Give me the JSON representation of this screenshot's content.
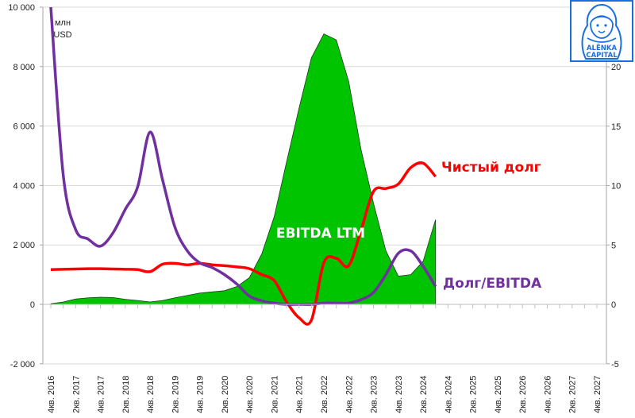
{
  "chart_data": {
    "type": "line",
    "title": "",
    "ylabel_left": "млн USD",
    "left_axis": {
      "min": -2000,
      "max": 10000,
      "ticks": [
        "10 000",
        "8 000",
        "6 000",
        "4 000",
        "2 000",
        "0",
        "-2 000"
      ],
      "tick_values": [
        10000,
        8000,
        6000,
        4000,
        2000,
        0,
        -2000
      ]
    },
    "right_axis": {
      "min": -5,
      "max": 25,
      "ticks": [
        "20",
        "15",
        "10",
        "5",
        "0",
        "-5"
      ],
      "tick_values": [
        20,
        15,
        10,
        5,
        0,
        -5
      ]
    },
    "x_labels": [
      "4кв. 2016",
      "2кв. 2017",
      "4кв. 2017",
      "2кв. 2018",
      "4кв. 2018",
      "2кв. 2019",
      "4кв. 2019",
      "2кв. 2020",
      "4кв. 2020",
      "2кв. 2021",
      "4кв. 2021",
      "2кв. 2022",
      "4кв. 2022",
      "2кв. 2023",
      "4кв. 2023",
      "2кв. 2024",
      "4кв. 2024",
      "2кв. 2025",
      "4кв. 2025",
      "2кв. 2026",
      "4кв. 2026",
      "2кв. 2027",
      "4кв. 2027"
    ],
    "x_quarters_total": 45,
    "grid": true,
    "series": [
      {
        "name": "EBITDA LTM",
        "type": "area",
        "axis": "left",
        "color": "#00c400",
        "values": [
          20,
          80,
          180,
          220,
          240,
          230,
          170,
          130,
          80,
          130,
          220,
          300,
          380,
          420,
          460,
          600,
          900,
          1700,
          2950,
          4800,
          6600,
          8300,
          9100,
          8900,
          7500,
          5200,
          3400,
          1800,
          950,
          1000,
          1450,
          2850
        ]
      },
      {
        "name": "Чистый долг",
        "type": "line",
        "axis": "left",
        "color": "#ff0000",
        "values": [
          1170,
          1180,
          1190,
          1200,
          1200,
          1190,
          1180,
          1170,
          1100,
          1350,
          1380,
          1330,
          1380,
          1330,
          1300,
          1260,
          1200,
          1000,
          800,
          80,
          -450,
          -530,
          1400,
          1550,
          1300,
          2500,
          3800,
          3900,
          4050,
          4600,
          4750,
          4300
        ]
      },
      {
        "name": "Долг/EBITDA",
        "type": "line",
        "axis": "right",
        "color": "#7030a0",
        "values": [
          30,
          10.9,
          6.3,
          5.5,
          4.9,
          6,
          8,
          9.9,
          14.5,
          10.5,
          6.5,
          4.5,
          3.5,
          3.1,
          2.5,
          1.7,
          0.7,
          0.3,
          0.1,
          0,
          0,
          0,
          0.1,
          0.1,
          0.1,
          0.4,
          1,
          2.5,
          4.3,
          4.5,
          3.2,
          1.5
        ]
      }
    ],
    "annotations": [
      {
        "text": "EBITDA LTM",
        "color": "#ffffff"
      },
      {
        "text": "Чистый долг",
        "color": "#ff0000"
      },
      {
        "text": "Долг/EBITDA",
        "color": "#7030a0"
      }
    ]
  },
  "labels": {
    "unit_line1": "млн",
    "unit_line2": "USD",
    "ebitda": "EBITDA LTM",
    "net_debt": "Чистый долг",
    "ratio": "Долг/EBITDA"
  },
  "logo": {
    "line1": "ALЁNKA",
    "line2": "CAPITAL",
    "color": "#1a6fe0"
  }
}
